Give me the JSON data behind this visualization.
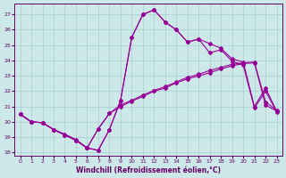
{
  "xlabel": "Windchill (Refroidissement éolien,°C)",
  "xlim": [
    -0.5,
    23.5
  ],
  "ylim": [
    17.8,
    27.7
  ],
  "yticks": [
    18,
    19,
    20,
    21,
    22,
    23,
    24,
    25,
    26,
    27
  ],
  "xticks": [
    0,
    1,
    2,
    3,
    4,
    5,
    6,
    7,
    8,
    9,
    10,
    11,
    12,
    13,
    14,
    15,
    16,
    17,
    18,
    19,
    20,
    21,
    22,
    23
  ],
  "bg_color": "#cce8e8",
  "grid_color": "#aacece",
  "line_color": "#990099",
  "line1_x": [
    0,
    1,
    2,
    3,
    4,
    5,
    6,
    7,
    8,
    9,
    10,
    11,
    12,
    13,
    14,
    15,
    16,
    17,
    18,
    19,
    20,
    21,
    22,
    23
  ],
  "line1_y": [
    20.5,
    20.0,
    19.95,
    19.5,
    19.2,
    18.85,
    18.3,
    18.15,
    19.5,
    21.4,
    25.5,
    27.0,
    27.3,
    26.5,
    26.0,
    25.2,
    25.4,
    25.1,
    24.8,
    24.1,
    23.9,
    21.0,
    22.2,
    20.7
  ],
  "line2_x": [
    0,
    1,
    2,
    3,
    4,
    5,
    6,
    7,
    8,
    9,
    10,
    11,
    12,
    13,
    14,
    15,
    16,
    17,
    18,
    19,
    20,
    21,
    22,
    23
  ],
  "line2_y": [
    20.5,
    20.0,
    19.95,
    19.5,
    19.15,
    18.8,
    18.3,
    18.15,
    19.5,
    21.4,
    25.5,
    27.0,
    27.3,
    26.5,
    26.0,
    25.2,
    25.4,
    24.5,
    24.7,
    23.95,
    23.7,
    20.9,
    22.0,
    20.65
  ],
  "line3_x": [
    0,
    1,
    2,
    3,
    4,
    5,
    6,
    7,
    8,
    9,
    10,
    11,
    12,
    13,
    14,
    15,
    16,
    17,
    18,
    19,
    20,
    21,
    22,
    23
  ],
  "line3_y": [
    20.5,
    20.0,
    19.95,
    19.5,
    19.15,
    18.8,
    18.3,
    19.55,
    20.55,
    21.1,
    21.4,
    21.75,
    22.05,
    22.3,
    22.6,
    22.9,
    23.1,
    23.35,
    23.55,
    23.75,
    23.85,
    23.9,
    21.3,
    20.75
  ],
  "line4_x": [
    0,
    1,
    2,
    3,
    4,
    5,
    6,
    7,
    8,
    9,
    10,
    11,
    12,
    13,
    14,
    15,
    16,
    17,
    18,
    19,
    20,
    21,
    22,
    23
  ],
  "line4_y": [
    20.5,
    20.0,
    19.95,
    19.5,
    19.15,
    18.8,
    18.3,
    19.55,
    20.55,
    21.0,
    21.35,
    21.65,
    22.0,
    22.2,
    22.55,
    22.8,
    23.0,
    23.2,
    23.45,
    23.65,
    23.8,
    23.85,
    21.1,
    20.7
  ]
}
